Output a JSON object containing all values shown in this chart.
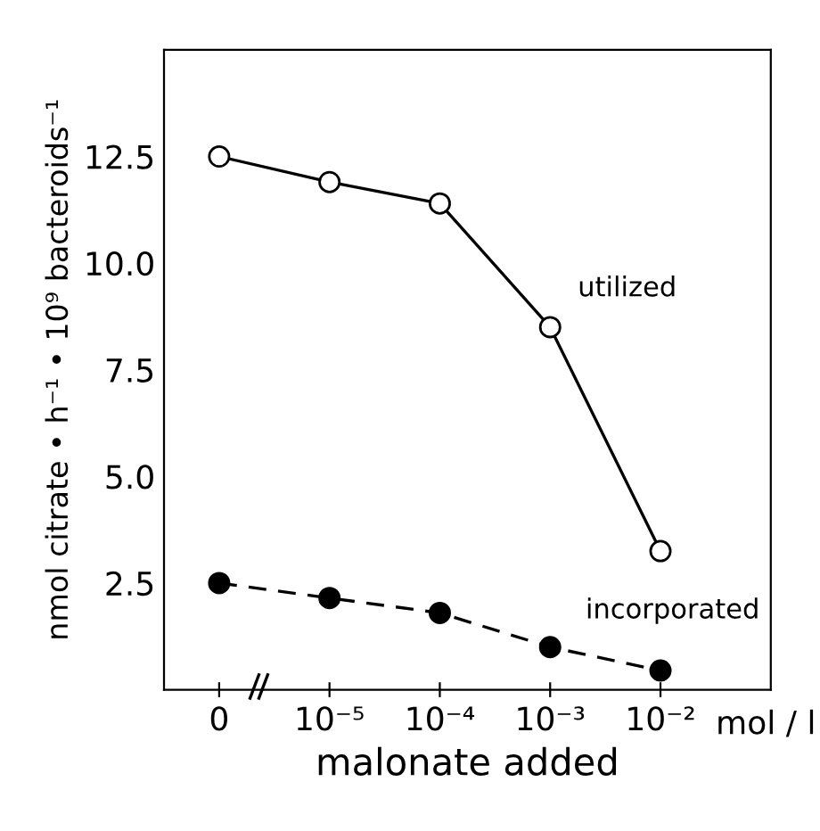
{
  "chart_data": {
    "type": "line",
    "xlabel": "malonate added",
    "ylabel": "nmol citrate • h⁻¹ • 10⁹ bacteroids⁻¹",
    "categories": [
      "0",
      "10⁻⁵",
      "10⁻⁴",
      "10⁻³",
      "10⁻²"
    ],
    "series": [
      {
        "name": "utilized",
        "color": "#000000",
        "line_style": "solid",
        "values": [
          12.5,
          11.9,
          11.4,
          8.5,
          3.25
        ]
      },
      {
        "name": "incorporated",
        "color": "#000000",
        "line_style": "dashed",
        "values": [
          2.5,
          2.15,
          1.8,
          1.0,
          0.45
        ]
      }
    ],
    "ylim": [
      0,
      15
    ],
    "yticks": [
      2.5,
      {
        "value": 5,
        "label": "5.0"
      },
      7.5,
      {
        "value": 10,
        "label": "10.0"
      },
      12.5
    ],
    "marker": "circle",
    "grid": false,
    "legend": false,
    "annotations": [
      "mol / l"
    ]
  }
}
